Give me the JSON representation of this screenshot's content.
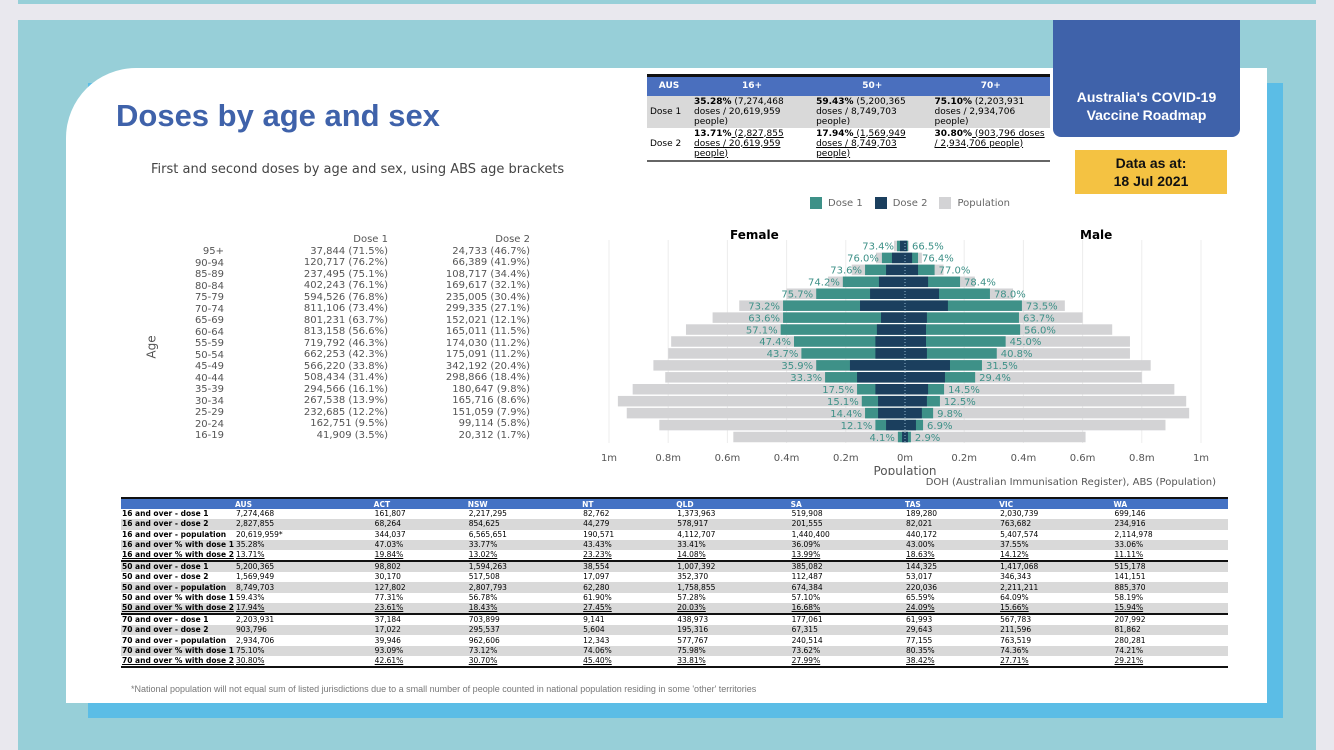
{
  "header": {
    "title": "Doses by age and sex",
    "subtitle": "First and second doses by age and sex, using ABS age brackets",
    "roadmap": "Australia's COVID-19 Vaccine Roadmap",
    "as_at_label": "Data as at:",
    "as_at_date": "18 Jul 2021"
  },
  "summary": {
    "headers": [
      "AUS",
      "16+",
      "50+",
      "70+"
    ],
    "rows": [
      {
        "label": "Dose 1",
        "cells": [
          {
            "pct": "35.28%",
            "text": " (7,274,468 doses / 20,619,959 people)"
          },
          {
            "pct": "59.43%",
            "text": " (5,200,365 doses / 8,749,703 people)"
          },
          {
            "pct": "75.10%",
            "text": " (2,203,931 doses / 2,934,706 people)"
          }
        ]
      },
      {
        "label": "Dose 2",
        "cells": [
          {
            "pct": "13.71%",
            "text": " (2,827,855 doses / 20,619,959 people)"
          },
          {
            "pct": "17.94%",
            "text": " (1,569,949 doses / 8,749,703 people)"
          },
          {
            "pct": "30.80%",
            "text": " (903,796 doses / 2,934,706 people)"
          }
        ]
      }
    ]
  },
  "legend": [
    {
      "label": "Dose 1",
      "color": "#3e9188"
    },
    {
      "label": "Dose 2",
      "color": "#1b3f5e"
    },
    {
      "label": "Population",
      "color": "#d3d3d5"
    }
  ],
  "age_table": {
    "ylabel": "Age",
    "dose1_header": "Dose 1",
    "dose2_header": "Dose 2",
    "ages": [
      "95+",
      "90-94",
      "85-89",
      "80-84",
      "75-79",
      "70-74",
      "65-69",
      "60-64",
      "55-59",
      "50-54",
      "45-49",
      "40-44",
      "35-39",
      "30-34",
      "25-29",
      "20-24",
      "16-19"
    ],
    "dose1": [
      "37,844 (71.5%)",
      "120,717 (76.2%)",
      "237,495 (75.1%)",
      "402,243 (76.1%)",
      "594,526 (76.8%)",
      "811,106 (73.4%)",
      "801,231 (63.7%)",
      "813,158 (56.6%)",
      "719,792 (46.3%)",
      "662,253 (42.3%)",
      "566,220 (33.8%)",
      "508,434 (31.4%)",
      "294,566 (16.1%)",
      "267,538 (13.9%)",
      "232,685 (12.2%)",
      "162,751 (9.5%)",
      "41,909 (3.5%)"
    ],
    "dose2": [
      "24,733 (46.7%)",
      "66,389 (41.9%)",
      "108,717 (34.4%)",
      "169,617 (32.1%)",
      "235,005 (30.4%)",
      "299,335 (27.1%)",
      "152,021 (12.1%)",
      "165,011 (11.5%)",
      "174,030 (11.2%)",
      "175,091 (11.2%)",
      "342,192 (20.4%)",
      "298,866 (18.4%)",
      "180,647 (9.8%)",
      "165,716 (8.6%)",
      "151,059 (7.9%)",
      "99,114 (5.8%)",
      "20,312 (1.7%)"
    ]
  },
  "chart_data": {
    "type": "bar",
    "subtype": "population-pyramid",
    "xlabel": "Population",
    "left_title": "Female",
    "right_title": "Male",
    "xlim": [
      -1000000,
      1000000
    ],
    "xticks": [
      "1m",
      "0.8m",
      "0.6m",
      "0.4m",
      "0.2m",
      "0m",
      "0.2m",
      "0.4m",
      "0.6m",
      "0.8m",
      "1m"
    ],
    "categories": [
      "95+",
      "90-94",
      "85-89",
      "80-84",
      "75-79",
      "70-74",
      "65-69",
      "60-64",
      "55-59",
      "50-54",
      "45-49",
      "40-44",
      "35-39",
      "30-34",
      "25-29",
      "20-24",
      "16-19"
    ],
    "female": {
      "population": [
        37000,
        98000,
        180000,
        260000,
        400000,
        560000,
        650000,
        740000,
        790000,
        800000,
        850000,
        810000,
        920000,
        970000,
        940000,
        830000,
        580000
      ],
      "dose1": [
        27000,
        78000,
        135000,
        210000,
        300000,
        412000,
        412000,
        420000,
        375000,
        350000,
        300000,
        270000,
        162000,
        146000,
        135000,
        100000,
        24000
      ],
      "dose2": [
        17000,
        44000,
        64000,
        88000,
        118000,
        152000,
        81000,
        95000,
        100000,
        100000,
        186000,
        162000,
        100000,
        91000,
        91000,
        64000,
        10000
      ],
      "dose1_pct": [
        "73.4%",
        "76.0%",
        "73.6%",
        "74.2%",
        "75.7%",
        "73.2%",
        "63.6%",
        "57.1%",
        "47.4%",
        "43.7%",
        "35.9%",
        "33.3%",
        "17.5%",
        "15.1%",
        "14.4%",
        "12.1%",
        "4.1%"
      ]
    },
    "male": {
      "population": [
        14000,
        57000,
        130000,
        236000,
        365000,
        540000,
        600000,
        700000,
        760000,
        760000,
        830000,
        800000,
        910000,
        950000,
        960000,
        880000,
        610000
      ],
      "dose1": [
        10000,
        44000,
        100000,
        186000,
        287000,
        395000,
        385000,
        389000,
        340000,
        310000,
        260000,
        237000,
        132000,
        118000,
        95000,
        61000,
        20000
      ],
      "dose2": [
        7000,
        24000,
        44000,
        78000,
        115000,
        145000,
        74000,
        71000,
        71000,
        74000,
        152000,
        135000,
        78000,
        74000,
        57000,
        37000,
        10000
      ],
      "dose1_pct": [
        "66.5%",
        "76.4%",
        "77.0%",
        "78.4%",
        "78.0%",
        "73.5%",
        "63.7%",
        "56.0%",
        "45.0%",
        "40.8%",
        "31.5%",
        "29.4%",
        "14.5%",
        "12.5%",
        "9.8%",
        "6.9%",
        "2.9%"
      ]
    }
  },
  "source": "DOH (Australian Immunisation Register), ABS (Population)",
  "jurisdictions": {
    "headers": [
      "",
      "AUS",
      "ACT",
      "NSW",
      "NT",
      "QLD",
      "SA",
      "TAS",
      "VIC",
      "WA"
    ],
    "rows": [
      [
        "16 and over - dose 1",
        "7,274,468",
        "161,807",
        "2,217,295",
        "82,762",
        "1,373,963",
        "519,908",
        "189,280",
        "2,030,739",
        "699,146"
      ],
      [
        "16 and over - dose 2",
        "2,827,855",
        "68,264",
        "854,625",
        "44,279",
        "578,917",
        "201,555",
        "82,021",
        "763,682",
        "234,916"
      ],
      [
        "16 and over - population",
        "20,619,959*",
        "344,037",
        "6,565,651",
        "190,571",
        "4,112,707",
        "1,440,400",
        "440,172",
        "5,407,574",
        "2,114,978"
      ],
      [
        "16 and over % with dose 1",
        "35.28%",
        "47.03%",
        "33.77%",
        "43.43%",
        "33.41%",
        "36.09%",
        "43.00%",
        "37.55%",
        "33.06%"
      ],
      [
        "16 and over % with dose 2",
        "13.71%",
        "19.84%",
        "13.02%",
        "23.23%",
        "14.08%",
        "13.99%",
        "18.63%",
        "14.12%",
        "11.11%"
      ],
      [
        "50 and over - dose 1",
        "5,200,365",
        "98,802",
        "1,594,263",
        "38,554",
        "1,007,392",
        "385,082",
        "144,325",
        "1,417,068",
        "515,178"
      ],
      [
        "50 and over - dose 2",
        "1,569,949",
        "30,170",
        "517,508",
        "17,097",
        "352,370",
        "112,487",
        "53,017",
        "346,343",
        "141,151"
      ],
      [
        "50 and over - population",
        "8,749,703",
        "127,802",
        "2,807,793",
        "62,280",
        "1,758,855",
        "674,384",
        "220,036",
        "2,211,211",
        "885,370"
      ],
      [
        "50 and over % with dose 1",
        "59.43%",
        "77.31%",
        "56.78%",
        "61.90%",
        "57.28%",
        "57.10%",
        "65.59%",
        "64.09%",
        "58.19%"
      ],
      [
        "50 and over % with dose 2",
        "17.94%",
        "23.61%",
        "18.43%",
        "27.45%",
        "20.03%",
        "16.68%",
        "24.09%",
        "15.66%",
        "15.94%"
      ],
      [
        "70 and over - dose 1",
        "2,203,931",
        "37,184",
        "703,899",
        "9,141",
        "438,973",
        "177,061",
        "61,993",
        "567,783",
        "207,992"
      ],
      [
        "70 and over - dose 2",
        "903,796",
        "17,022",
        "295,537",
        "5,604",
        "195,316",
        "67,315",
        "29,643",
        "211,596",
        "81,862"
      ],
      [
        "70 and over - population",
        "2,934,706",
        "39,946",
        "962,606",
        "12,343",
        "577,767",
        "240,514",
        "77,155",
        "763,519",
        "280,281"
      ],
      [
        "70 and over % with dose 1",
        "75.10%",
        "93.09%",
        "73.12%",
        "74.06%",
        "75.98%",
        "73.62%",
        "80.35%",
        "74.36%",
        "74.21%"
      ],
      [
        "70 and over % with dose 2",
        "30.80%",
        "42.61%",
        "30.70%",
        "45.40%",
        "33.81%",
        "27.99%",
        "38.42%",
        "27.71%",
        "29.21%"
      ]
    ]
  },
  "footnote": "*National population will not equal sum of listed jurisdictions due to a small number of people counted in national population residing in some 'other' territories"
}
